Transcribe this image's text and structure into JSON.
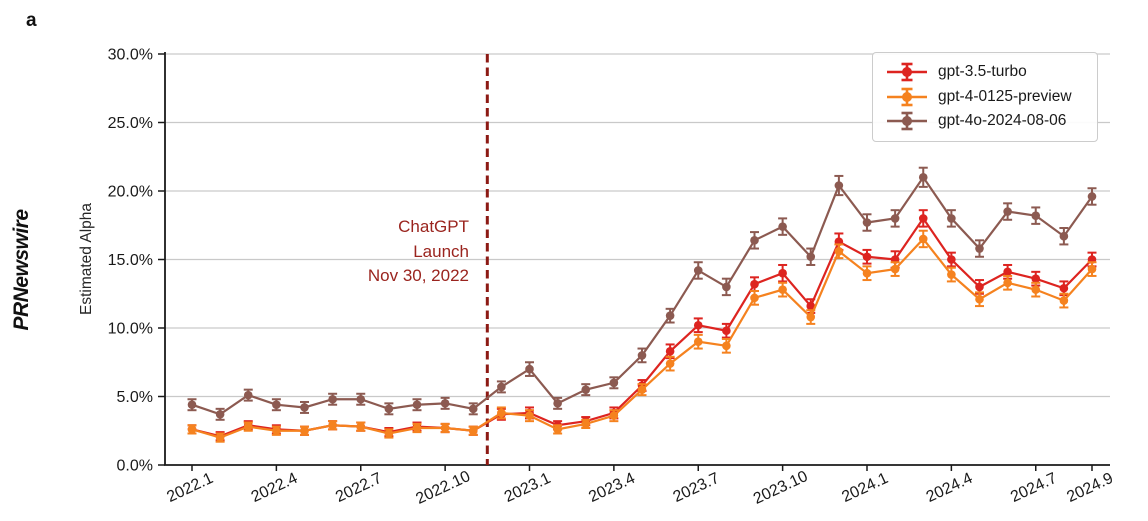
{
  "panel_label": "a",
  "watermark": "PRNewswire",
  "chart_data": {
    "type": "line",
    "title": "",
    "xlabel": "",
    "ylabel": "Estimated Alpha",
    "ylim": [
      0,
      30
    ],
    "ytick_labels": [
      "0.0%",
      "5.0%",
      "10.0%",
      "15.0%",
      "20.0%",
      "25.0%",
      "30.0%"
    ],
    "grid": "horizontal",
    "legend_position": "upper right",
    "x": [
      "2022.1",
      "2022.2",
      "2022.3",
      "2022.4",
      "2022.5",
      "2022.6",
      "2022.7",
      "2022.8",
      "2022.9",
      "2022.10",
      "2022.11",
      "2022.12",
      "2023.1",
      "2023.2",
      "2023.3",
      "2023.4",
      "2023.5",
      "2023.6",
      "2023.7",
      "2023.8",
      "2023.9",
      "2023.10",
      "2023.11",
      "2023.12",
      "2024.1",
      "2024.2",
      "2024.3",
      "2024.4",
      "2024.5",
      "2024.6",
      "2024.7",
      "2024.8",
      "2024.9"
    ],
    "xtick_shown_indices": [
      0,
      3,
      6,
      9,
      12,
      15,
      18,
      21,
      24,
      27,
      30,
      32
    ],
    "series": [
      {
        "name": "gpt-3.5-turbo",
        "color": "#dd2420",
        "values": [
          2.6,
          2.1,
          2.9,
          2.6,
          2.5,
          2.9,
          2.8,
          2.4,
          2.8,
          2.7,
          2.5,
          3.7,
          3.8,
          2.9,
          3.2,
          3.8,
          5.8,
          8.3,
          10.2,
          9.8,
          13.2,
          14.0,
          11.6,
          16.3,
          15.2,
          15.0,
          18.0,
          15.0,
          13.0,
          14.1,
          13.6,
          12.9,
          15.0
        ],
        "errors": [
          0.3,
          0.3,
          0.3,
          0.3,
          0.3,
          0.3,
          0.3,
          0.3,
          0.3,
          0.3,
          0.3,
          0.4,
          0.4,
          0.3,
          0.3,
          0.4,
          0.4,
          0.5,
          0.5,
          0.5,
          0.5,
          0.6,
          0.5,
          0.6,
          0.5,
          0.6,
          0.6,
          0.5,
          0.5,
          0.5,
          0.5,
          0.5,
          0.5
        ]
      },
      {
        "name": "gpt-4-0125-preview",
        "color": "#f5821f",
        "values": [
          2.6,
          2.0,
          2.8,
          2.5,
          2.5,
          2.9,
          2.8,
          2.3,
          2.7,
          2.7,
          2.5,
          3.8,
          3.6,
          2.6,
          3.0,
          3.6,
          5.5,
          7.4,
          9.0,
          8.7,
          12.2,
          12.8,
          10.8,
          15.6,
          14.0,
          14.3,
          16.5,
          13.9,
          12.1,
          13.3,
          12.8,
          12.0,
          14.3
        ],
        "errors": [
          0.3,
          0.3,
          0.3,
          0.3,
          0.3,
          0.3,
          0.3,
          0.3,
          0.3,
          0.3,
          0.3,
          0.4,
          0.4,
          0.3,
          0.3,
          0.4,
          0.4,
          0.5,
          0.5,
          0.5,
          0.5,
          0.5,
          0.5,
          0.5,
          0.5,
          0.5,
          0.6,
          0.5,
          0.5,
          0.5,
          0.5,
          0.5,
          0.5
        ]
      },
      {
        "name": "gpt-4o-2024-08-06",
        "color": "#8c5a51",
        "values": [
          4.4,
          3.7,
          5.1,
          4.4,
          4.2,
          4.8,
          4.8,
          4.1,
          4.4,
          4.5,
          4.1,
          5.7,
          7.0,
          4.5,
          5.5,
          6.0,
          8.0,
          10.9,
          14.2,
          13.0,
          16.4,
          17.4,
          15.2,
          20.4,
          17.7,
          18.0,
          21.0,
          18.0,
          15.8,
          18.5,
          18.2,
          16.7,
          19.6
        ],
        "errors": [
          0.4,
          0.4,
          0.4,
          0.4,
          0.4,
          0.4,
          0.4,
          0.4,
          0.4,
          0.4,
          0.4,
          0.4,
          0.5,
          0.4,
          0.4,
          0.4,
          0.5,
          0.5,
          0.6,
          0.6,
          0.6,
          0.6,
          0.6,
          0.7,
          0.6,
          0.6,
          0.7,
          0.6,
          0.6,
          0.6,
          0.6,
          0.6,
          0.6
        ]
      }
    ],
    "launch_annotation": {
      "lines": [
        "ChatGPT",
        "Launch",
        "Nov 30, 2022"
      ],
      "color": "#9a241e",
      "line_color": "#8c1a14",
      "x_index": 10.5
    }
  }
}
